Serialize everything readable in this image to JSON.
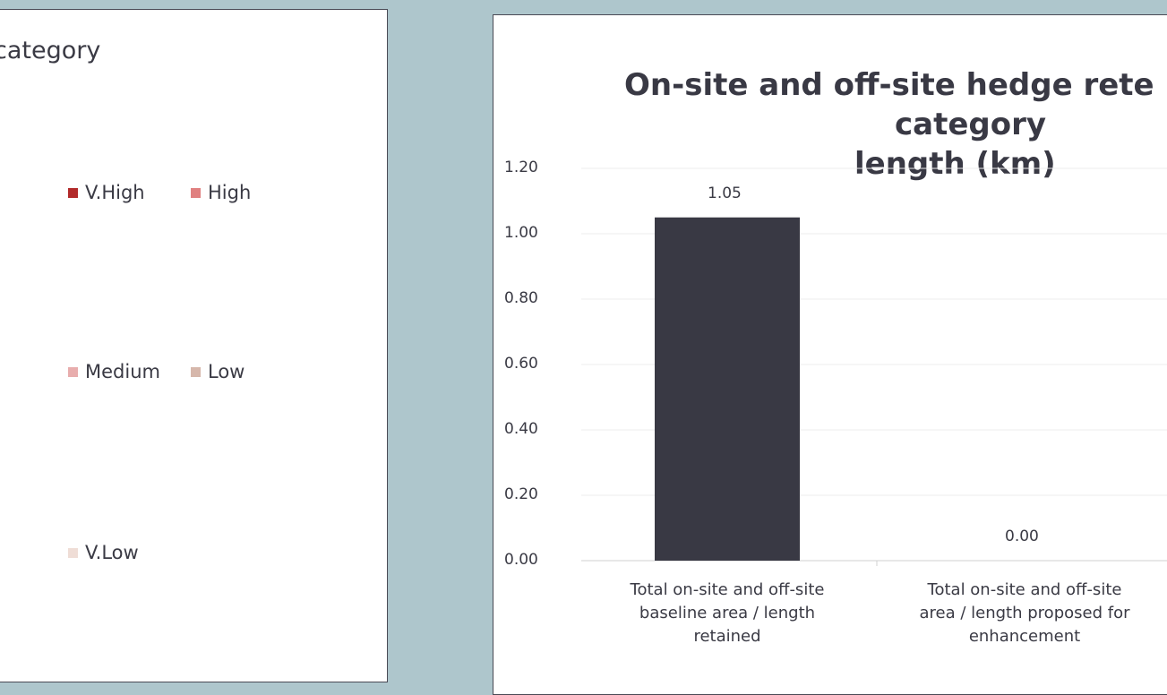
{
  "left_panel": {
    "title": "category",
    "legend": [
      {
        "label": "V.High",
        "color": "#b22a2a"
      },
      {
        "label": "High",
        "color": "#e08080"
      },
      {
        "label": "Medium",
        "color": "#e8adad"
      },
      {
        "label": "Low",
        "color": "#d6b7ab"
      },
      {
        "label": "V.Low",
        "color": "#efddd6"
      }
    ]
  },
  "chart_data": {
    "type": "bar",
    "title_lines": [
      "On-site and off-site hedge rete",
      "category",
      "length (km)"
    ],
    "categories": [
      [
        "Total on-site and off-site",
        "baseline area / length",
        "retained"
      ],
      [
        "Total on-site and off-site",
        "area / length proposed for",
        "enhancement"
      ]
    ],
    "values": [
      1.05,
      0.0
    ],
    "data_labels": [
      "1.05",
      "0.00"
    ],
    "y_ticks": [
      "0.00",
      "0.20",
      "0.40",
      "0.60",
      "0.80",
      "1.00",
      "1.20"
    ],
    "ylim": [
      0,
      1.2
    ],
    "bar_color": "#393944",
    "grid": true
  }
}
